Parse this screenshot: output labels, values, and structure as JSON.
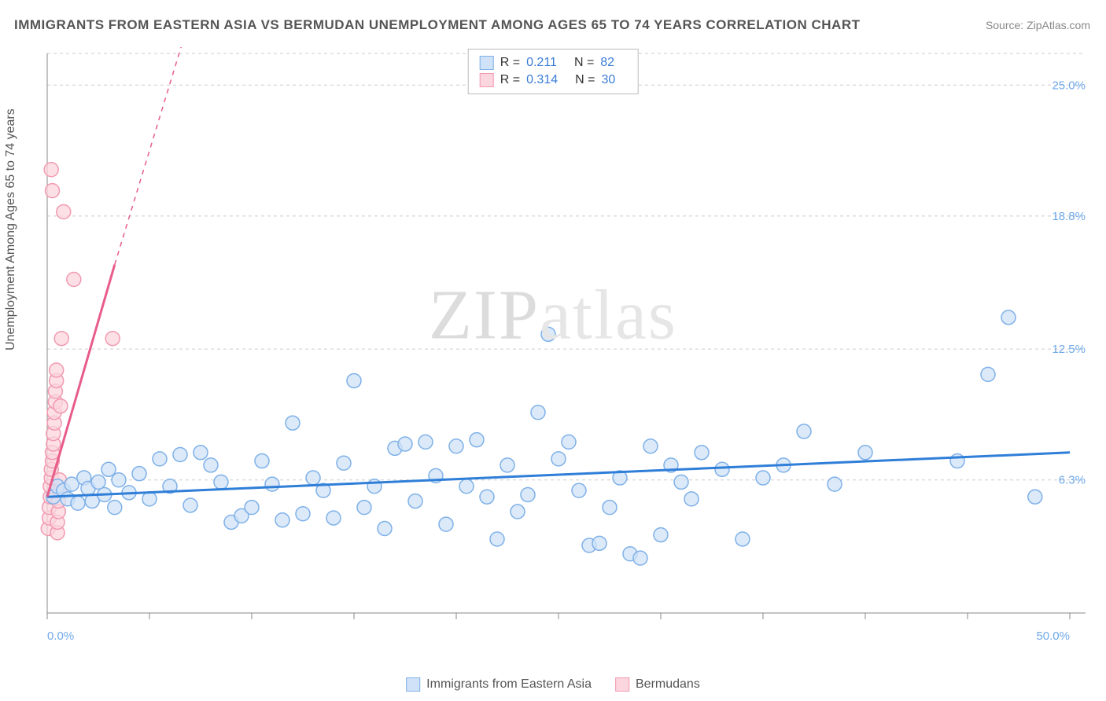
{
  "title": "IMMIGRANTS FROM EASTERN ASIA VS BERMUDAN UNEMPLOYMENT AMONG AGES 65 TO 74 YEARS CORRELATION CHART",
  "source": "Source: ZipAtlas.com",
  "ylabel": "Unemployment Among Ages 65 to 74 years",
  "watermark": "ZIPatlas",
  "chart": {
    "type": "scatter",
    "xlim": [
      0,
      50
    ],
    "ylim": [
      0,
      26.5
    ],
    "x_axis_labels": [
      {
        "v": 0,
        "t": "0.0%"
      },
      {
        "v": 50,
        "t": "50.0%"
      }
    ],
    "y_axis_labels": [
      {
        "v": 6.3,
        "t": "6.3%"
      },
      {
        "v": 12.5,
        "t": "12.5%"
      },
      {
        "v": 18.8,
        "t": "18.8%"
      },
      {
        "v": 25.0,
        "t": "25.0%"
      }
    ],
    "x_ticks": [
      0,
      5,
      10,
      15,
      20,
      25,
      30,
      35,
      40,
      45,
      50
    ],
    "background_color": "#ffffff",
    "grid_color": "#cccccc",
    "axis_color": "#888888",
    "tick_label_color": "#6fa8e8",
    "marker_radius": 9,
    "series": [
      {
        "name": "Immigrants from Eastern Asia",
        "color_fill": "#cfe2f7",
        "color_stroke": "#7fb1e8",
        "marker_opacity": 0.75,
        "trend": {
          "x1": 0,
          "y1": 5.5,
          "x2": 50,
          "y2": 7.6,
          "dashed_ext": false,
          "stroke": "#2f7ed8",
          "width": 3
        },
        "R": 0.211,
        "N": 82,
        "points": [
          [
            0.3,
            5.5
          ],
          [
            0.5,
            6.0
          ],
          [
            0.8,
            5.8
          ],
          [
            1.0,
            5.4
          ],
          [
            1.2,
            6.1
          ],
          [
            1.5,
            5.2
          ],
          [
            1.8,
            6.4
          ],
          [
            2.0,
            5.9
          ],
          [
            2.2,
            5.3
          ],
          [
            2.5,
            6.2
          ],
          [
            2.8,
            5.6
          ],
          [
            3.0,
            6.8
          ],
          [
            3.3,
            5.0
          ],
          [
            3.5,
            6.3
          ],
          [
            4.0,
            5.7
          ],
          [
            4.5,
            6.6
          ],
          [
            5.0,
            5.4
          ],
          [
            5.5,
            7.3
          ],
          [
            6.0,
            6.0
          ],
          [
            6.5,
            7.5
          ],
          [
            7.0,
            5.1
          ],
          [
            7.5,
            7.6
          ],
          [
            8.0,
            7.0
          ],
          [
            8.5,
            6.2
          ],
          [
            9.0,
            4.3
          ],
          [
            9.5,
            4.6
          ],
          [
            10.0,
            5.0
          ],
          [
            10.5,
            7.2
          ],
          [
            11.0,
            6.1
          ],
          [
            11.5,
            4.4
          ],
          [
            12.0,
            9.0
          ],
          [
            12.5,
            4.7
          ],
          [
            13.0,
            6.4
          ],
          [
            13.5,
            5.8
          ],
          [
            14.0,
            4.5
          ],
          [
            14.5,
            7.1
          ],
          [
            15.0,
            11.0
          ],
          [
            15.5,
            5.0
          ],
          [
            16.0,
            6.0
          ],
          [
            16.5,
            4.0
          ],
          [
            17.0,
            7.8
          ],
          [
            17.5,
            8.0
          ],
          [
            18.0,
            5.3
          ],
          [
            18.5,
            8.1
          ],
          [
            19.0,
            6.5
          ],
          [
            19.5,
            4.2
          ],
          [
            20.0,
            7.9
          ],
          [
            20.5,
            6.0
          ],
          [
            21.0,
            8.2
          ],
          [
            21.5,
            5.5
          ],
          [
            22.0,
            3.5
          ],
          [
            22.5,
            7.0
          ],
          [
            23.0,
            4.8
          ],
          [
            23.5,
            5.6
          ],
          [
            24.0,
            9.5
          ],
          [
            24.5,
            13.2
          ],
          [
            25.0,
            7.3
          ],
          [
            25.5,
            8.1
          ],
          [
            26.0,
            5.8
          ],
          [
            26.5,
            3.2
          ],
          [
            27.0,
            3.3
          ],
          [
            27.5,
            5.0
          ],
          [
            28.0,
            6.4
          ],
          [
            28.5,
            2.8
          ],
          [
            29.0,
            2.6
          ],
          [
            29.5,
            7.9
          ],
          [
            30.0,
            3.7
          ],
          [
            30.5,
            7.0
          ],
          [
            31.0,
            6.2
          ],
          [
            31.5,
            5.4
          ],
          [
            32.0,
            7.6
          ],
          [
            33.0,
            6.8
          ],
          [
            34.0,
            3.5
          ],
          [
            35.0,
            6.4
          ],
          [
            36.0,
            7.0
          ],
          [
            37.0,
            8.6
          ],
          [
            38.5,
            6.1
          ],
          [
            40.0,
            7.6
          ],
          [
            44.5,
            7.2
          ],
          [
            46.0,
            11.3
          ],
          [
            47.0,
            14.0
          ],
          [
            48.3,
            5.5
          ]
        ]
      },
      {
        "name": "Bermudans",
        "color_fill": "#fbd6de",
        "color_stroke": "#f29ab0",
        "marker_opacity": 0.75,
        "trend": {
          "x1": 0,
          "y1": 5.5,
          "x2": 3.3,
          "y2": 16.5,
          "dashed_ext": true,
          "ext_x2": 8.5,
          "ext_y2": 33,
          "stroke": "#e85c8a",
          "width": 3
        },
        "R": 0.314,
        "N": 30,
        "points": [
          [
            0.05,
            4.0
          ],
          [
            0.1,
            4.5
          ],
          [
            0.1,
            5.0
          ],
          [
            0.15,
            5.5
          ],
          [
            0.15,
            6.0
          ],
          [
            0.2,
            6.4
          ],
          [
            0.2,
            6.8
          ],
          [
            0.25,
            7.2
          ],
          [
            0.25,
            7.6
          ],
          [
            0.3,
            8.0
          ],
          [
            0.3,
            8.5
          ],
          [
            0.35,
            9.0
          ],
          [
            0.35,
            9.5
          ],
          [
            0.4,
            10.0
          ],
          [
            0.4,
            10.5
          ],
          [
            0.45,
            11.0
          ],
          [
            0.45,
            11.5
          ],
          [
            0.5,
            3.8
          ],
          [
            0.5,
            4.3
          ],
          [
            0.55,
            4.8
          ],
          [
            0.55,
            5.3
          ],
          [
            0.6,
            5.8
          ],
          [
            0.6,
            6.3
          ],
          [
            0.65,
            9.8
          ],
          [
            0.7,
            13.0
          ],
          [
            0.2,
            21.0
          ],
          [
            0.25,
            20.0
          ],
          [
            0.8,
            19.0
          ],
          [
            1.3,
            15.8
          ],
          [
            3.2,
            13.0
          ]
        ]
      }
    ]
  },
  "top_legend": {
    "rows": [
      {
        "swatch_fill": "#cfe2f7",
        "swatch_stroke": "#7fb1e8",
        "r_label": "R =",
        "r_val": "0.211",
        "n_label": "N =",
        "n_val": "82"
      },
      {
        "swatch_fill": "#fbd6de",
        "swatch_stroke": "#f29ab0",
        "r_label": "R =",
        "r_val": "0.314",
        "n_label": "N =",
        "n_val": "30"
      }
    ]
  },
  "bottom_legend": {
    "items": [
      {
        "swatch_fill": "#cfe2f7",
        "swatch_stroke": "#7fb1e8",
        "label": "Immigrants from Eastern Asia"
      },
      {
        "swatch_fill": "#fbd6de",
        "swatch_stroke": "#f29ab0",
        "label": "Bermudans"
      }
    ]
  }
}
